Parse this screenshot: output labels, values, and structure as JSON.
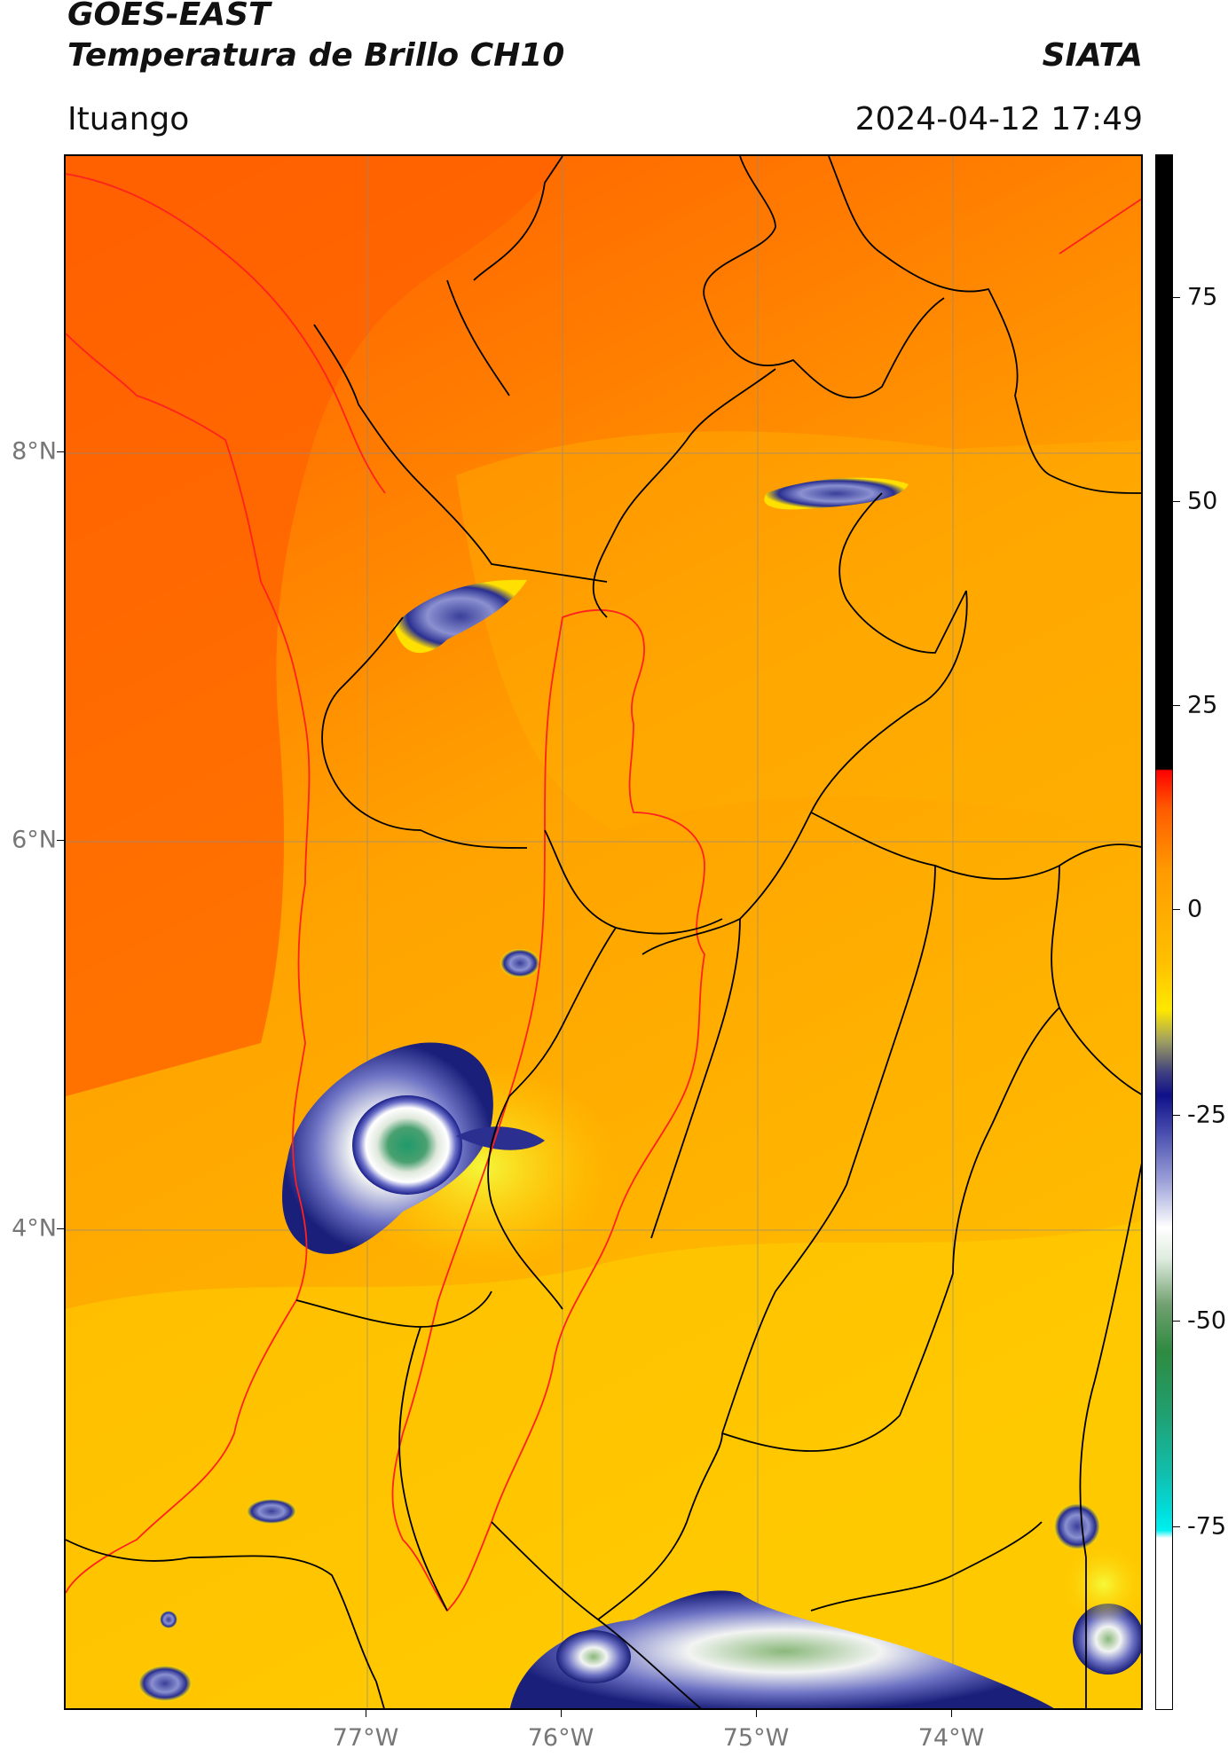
{
  "header": {
    "title_line1": "GOES-EAST",
    "title_line2": "Temperatura de Brillo CH10",
    "brand": "SIATA",
    "location": "Ituango",
    "datetime": "2024-04-12 17:49"
  },
  "map": {
    "latitude_labels": [
      "8°N",
      "6°N",
      "4°N"
    ],
    "longitude_labels": [
      "77°W",
      "76°W",
      "75°W",
      "74°W"
    ],
    "lat_range": [
      1.9,
      9.9
    ],
    "lon_range": [
      -78.55,
      -73.0
    ],
    "gridlines": true,
    "boundary_colors": {
      "national_departmental": "#000000",
      "highlighted_region": "#ff2020"
    },
    "background_field_colors": {
      "warm_orange": "#ff6a00",
      "mid_orange": "#ff9500",
      "yellow": "#ffc000"
    }
  },
  "colorbar": {
    "tick_labels": [
      "75",
      "50",
      "25",
      "0",
      "-25",
      "-50",
      "-75"
    ],
    "tick_values": [
      75,
      50,
      25,
      0,
      -25,
      -50,
      -75
    ],
    "range": [
      -90,
      90
    ]
  }
}
